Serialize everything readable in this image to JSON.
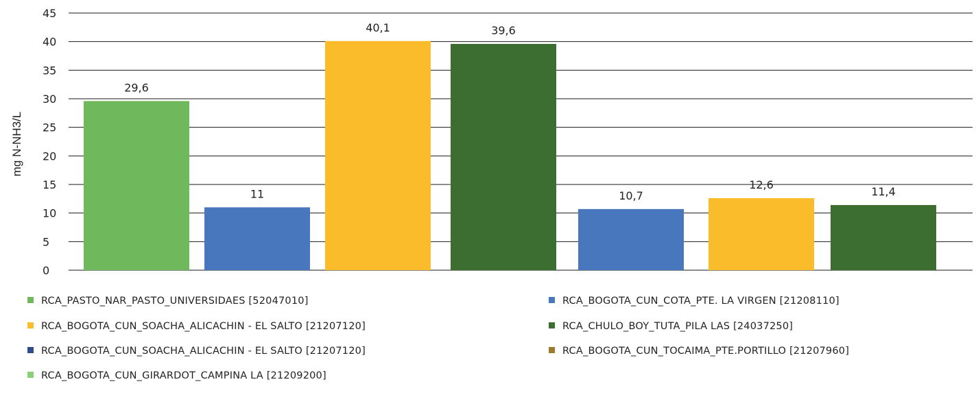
{
  "chart_data": {
    "type": "bar",
    "ylabel": "mg N-NH3/L",
    "ylim": [
      0,
      45
    ],
    "ytick_step": 5,
    "grid": true,
    "legend_placement": "bottom",
    "bars": [
      {
        "value": 29.6,
        "label": "29,6",
        "color": "#70b85c"
      },
      {
        "value": 11,
        "label": "11",
        "color": "#4877bd"
      },
      {
        "value": 40.1,
        "label": "40,1",
        "color": "#fbbc2c"
      },
      {
        "value": 39.6,
        "label": "39,6",
        "color": "#3d6e31"
      },
      {
        "value": 10.7,
        "label": "10,7",
        "color": "#4877bd"
      },
      {
        "value": 12.6,
        "label": "12,6",
        "color": "#fbbc2c"
      },
      {
        "value": 11.4,
        "label": "11,4",
        "color": "#3d6e31"
      }
    ],
    "legend": [
      {
        "name": "RCA_PASTO_NAR_PASTO_UNIVERSIDAES [52047010]",
        "color": "#70b85c"
      },
      {
        "name": "RCA_BOGOTA_CUN_COTA_PTE. LA VIRGEN [21208110]",
        "color": "#4877bd"
      },
      {
        "name": "RCA_BOGOTA_CUN_SOACHA_ALICACHIN - EL SALTO [21207120]",
        "color": "#fbbc2c"
      },
      {
        "name": "RCA_CHULO_BOY_TUTA_PILA LAS [24037250]",
        "color": "#3d6e31"
      },
      {
        "name": "RCA_BOGOTA_CUN_SOACHA_ALICACHIN - EL SALTO [21207120]",
        "color": "#2f4d8c"
      },
      {
        "name": "RCA_BOGOTA_CUN_TOCAIMA_PTE.PORTILLO [21207960]",
        "color": "#9c7a30"
      },
      {
        "name": "RCA_BOGOTA_CUN_GIRARDOT_CAMPINA LA [21209200]",
        "color": "#8ccf7a"
      }
    ]
  }
}
